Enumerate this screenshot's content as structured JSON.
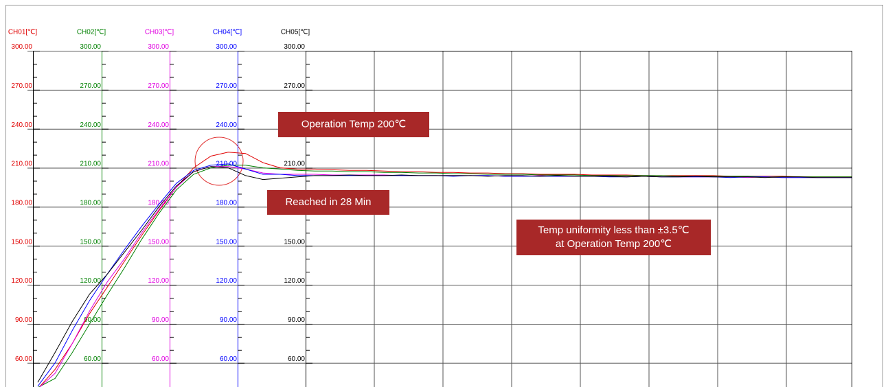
{
  "chart_data": {
    "type": "line",
    "series": [
      {
        "name": "CH01[℃]",
        "color": "#e00000",
        "values": [
          40,
          55,
          75,
          98,
          118,
          138,
          158,
          177,
          195,
          210,
          219,
          222,
          221,
          214,
          210,
          209,
          209,
          208.5,
          208,
          208,
          207.5,
          207,
          207,
          206.5,
          206.5,
          206,
          206,
          205.5,
          205.5,
          205,
          205,
          205,
          204.5,
          204.5,
          204.5,
          204,
          204,
          204,
          204,
          204,
          203.5,
          203.5,
          203.5,
          203.5,
          203,
          203,
          203,
          203
        ]
      },
      {
        "name": "CH02[℃]",
        "color": "#008000",
        "values": [
          41,
          48,
          68,
          90,
          112,
          133,
          155,
          175,
          193,
          205,
          210,
          212,
          212,
          210,
          209,
          208,
          207.5,
          207.5,
          207,
          207,
          206.5,
          206.5,
          206,
          206,
          205.5,
          205.5,
          205,
          205,
          205,
          204.5,
          204.5,
          204.5,
          204,
          204,
          204,
          204,
          204,
          203.5,
          203.5,
          203.5,
          203.5,
          203.5,
          203,
          203,
          203,
          203,
          203,
          203
        ]
      },
      {
        "name": "CH03[℃]",
        "color": "#e000e0",
        "values": [
          40,
          52,
          75,
          100,
          122,
          140,
          160,
          178,
          195,
          207,
          211,
          211,
          209,
          206,
          205,
          205,
          205,
          204.5,
          204.5,
          204.5,
          204.5,
          204,
          204,
          204,
          204,
          204,
          204,
          203.5,
          203.5,
          204,
          203.5,
          203.5,
          203.5,
          203.5,
          203,
          203.5,
          203,
          203,
          203,
          203,
          203,
          202.5,
          203,
          202.5,
          202.5,
          202.5,
          202.5,
          202.5
        ]
      },
      {
        "name": "CH04[℃]",
        "color": "#0000ff",
        "values": [
          42,
          60,
          85,
          108,
          128,
          147,
          165,
          182,
          198,
          208,
          212,
          213,
          209,
          205,
          205,
          204,
          204,
          204,
          204,
          204,
          204,
          204,
          204,
          204,
          203.5,
          204,
          204,
          203.5,
          203.5,
          203.5,
          203.5,
          203.5,
          203.5,
          203,
          203,
          203.5,
          203,
          203,
          203,
          203,
          202.5,
          203,
          203,
          202.5,
          202.5,
          202.5,
          202.5,
          202.5
        ]
      },
      {
        "name": "CH05[℃]",
        "color": "#000000",
        "values": [
          45,
          68,
          92,
          113,
          128,
          145,
          162,
          180,
          196,
          207,
          211,
          210,
          204,
          201,
          202,
          203,
          204,
          204,
          204.5,
          204,
          204,
          204.5,
          204,
          204,
          204,
          204,
          203.5,
          204,
          204,
          203.5,
          204,
          203.5,
          203.5,
          203.5,
          203,
          203.5,
          203,
          203,
          203.5,
          203,
          203,
          203,
          202.5,
          203,
          203,
          202.5,
          202.5,
          202.5
        ]
      }
    ],
    "ylim": [
      40,
      300
    ],
    "yticks": [
      {
        "value": 60,
        "label": "60.00"
      },
      {
        "value": 90,
        "label": "90.00"
      },
      {
        "value": 120,
        "label": "120.00"
      },
      {
        "value": 150,
        "label": "150.00"
      },
      {
        "value": 180,
        "label": "180.00"
      },
      {
        "value": 210,
        "label": "210.00"
      },
      {
        "value": 240,
        "label": "240.00"
      },
      {
        "value": 270,
        "label": "270.00"
      },
      {
        "value": 300,
        "label": "300.00"
      }
    ],
    "grid": true,
    "annotations": [
      {
        "lines": [
          "Operation Temp 200℃"
        ]
      },
      {
        "lines": [
          "Reached in 28 Min"
        ]
      },
      {
        "lines": [
          "Temp uniformity less than ±3.5℃",
          "at Operation Temp 200℃"
        ]
      }
    ]
  }
}
